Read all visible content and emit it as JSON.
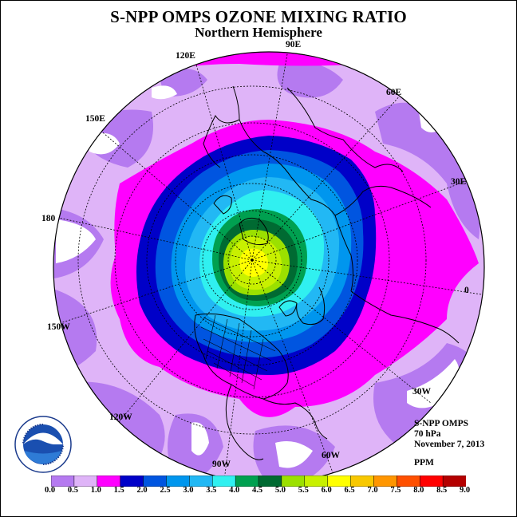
{
  "title": "S-NPP OMPS OZONE MIXING RATIO",
  "subtitle": "Northern Hemisphere",
  "longitude_labels": [
    "90E",
    "60E",
    "30E",
    "0",
    "30W",
    "60W",
    "90W",
    "120W",
    "150W",
    "180",
    "150E",
    "120E"
  ],
  "info": {
    "instrument": "S-NPP OMPS",
    "pressure": "70 hPa",
    "date": "November 7, 2013",
    "units": "PPM"
  },
  "colorbar": {
    "ticks": [
      "0.0",
      "0.5",
      "1.0",
      "1.5",
      "2.0",
      "2.5",
      "3.0",
      "3.5",
      "4.0",
      "4.5",
      "5.0",
      "5.5",
      "6.0",
      "6.5",
      "7.0",
      "7.5",
      "8.0",
      "8.5",
      "9.0"
    ],
    "colors": [
      "#b57af0",
      "#dfb4f8",
      "#ff00ff",
      "#0000c8",
      "#0055e0",
      "#0096ee",
      "#22b8f4",
      "#30f0f0",
      "#00a050",
      "#006a32",
      "#9be000",
      "#c8f000",
      "#ffff00",
      "#f8c800",
      "#ff9600",
      "#ff5000",
      "#ff0000",
      "#b40000",
      "#8c5a3c"
    ]
  },
  "legend_colors": {
    "contour_line": "#000000",
    "map_background": "#ffffff"
  },
  "icons": {
    "logo": "noaa-logo"
  }
}
